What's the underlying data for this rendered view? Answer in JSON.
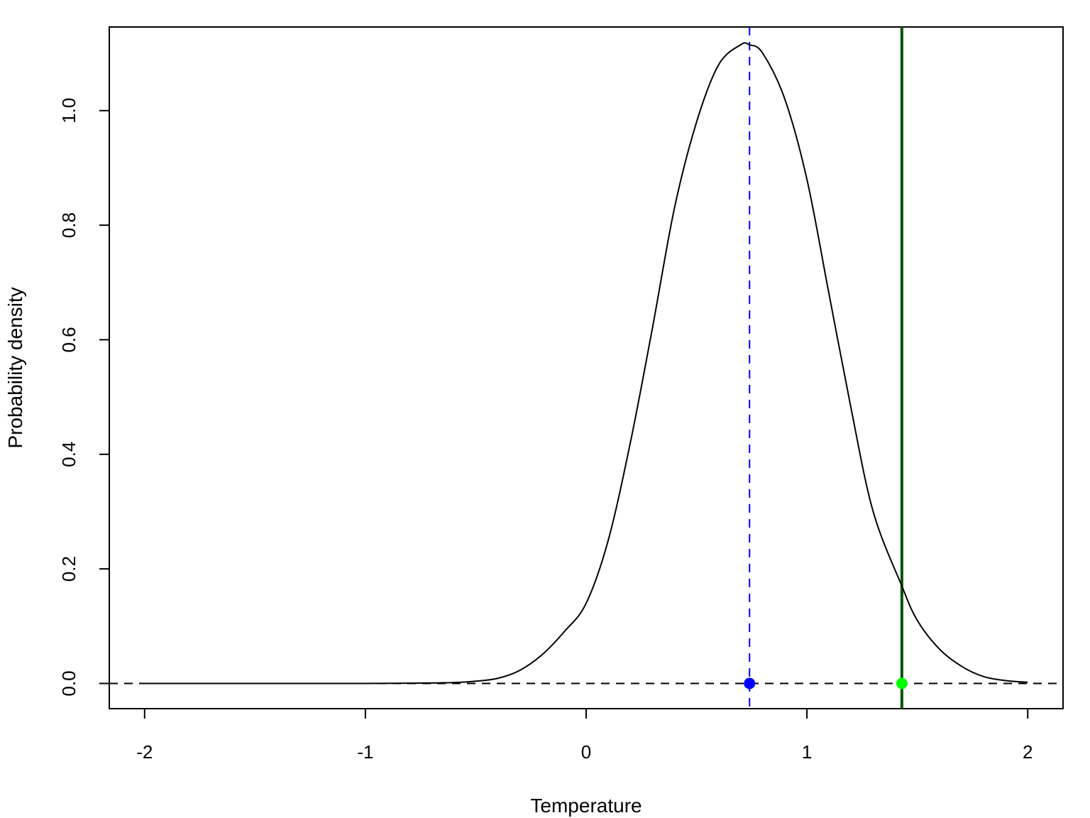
{
  "chart_data": {
    "type": "line",
    "title": "",
    "xlabel": "Temperature",
    "ylabel": "Probability density",
    "xlim": [
      -2.16,
      2.16
    ],
    "ylim": [
      -0.044,
      1.146
    ],
    "x_ticks": [
      -2,
      -1,
      0,
      1,
      2
    ],
    "y_ticks": [
      0.0,
      0.2,
      0.4,
      0.6,
      0.8,
      1.0
    ],
    "x_tick_labels": [
      "-2",
      "-1",
      "0",
      "1",
      "2"
    ],
    "y_tick_labels": [
      "0.0",
      "0.2",
      "0.4",
      "0.6",
      "0.8",
      "1.0"
    ],
    "grid": false,
    "legend": "none",
    "series": [
      {
        "color": "#000000",
        "x": [
          -2.0,
          -1.5,
          -1.0,
          -0.8,
          -0.6,
          -0.5,
          -0.4,
          -0.3,
          -0.2,
          -0.1,
          0.0,
          0.1,
          0.2,
          0.3,
          0.4,
          0.5,
          0.6,
          0.7,
          0.74,
          0.8,
          0.9,
          1.0,
          1.1,
          1.2,
          1.3,
          1.43,
          1.5,
          1.6,
          1.7,
          1.8,
          1.9,
          2.0
        ],
        "y": [
          0.0,
          0.0,
          0.0,
          0.0005,
          0.0015,
          0.004,
          0.009,
          0.023,
          0.05,
          0.09,
          0.14,
          0.25,
          0.42,
          0.62,
          0.83,
          0.98,
          1.08,
          1.115,
          1.115,
          1.1,
          1.02,
          0.88,
          0.68,
          0.48,
          0.3,
          0.17,
          0.11,
          0.06,
          0.03,
          0.012,
          0.005,
          0.002
        ]
      }
    ],
    "reference_lines": {
      "horizontal_dashed": {
        "y": 0.0,
        "color": "#000000"
      },
      "vertical_dashed": {
        "x": 0.74,
        "color": "#0000ff"
      },
      "vertical_solid": {
        "x": 1.43,
        "color": "#005500"
      }
    },
    "points": [
      {
        "x": 0.74,
        "y": 0.0,
        "color": "#0000ff"
      },
      {
        "x": 1.43,
        "y": 0.0,
        "color": "#00ff00"
      }
    ]
  }
}
